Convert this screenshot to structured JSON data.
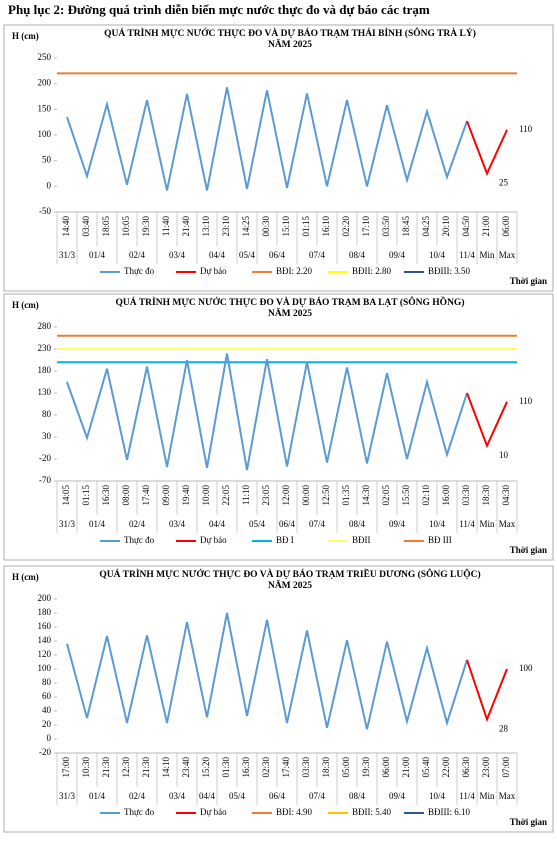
{
  "header": {
    "title": "Phụ lục 2: Đường quá trình diễn biến mực nước thực đo và dự báo các trạm"
  },
  "chart_data": [
    {
      "type": "line",
      "title": "QUÁ TRÌNH MỰC NƯỚC THỰC ĐO VÀ DỰ BÁO TRẠM THÁI BÌNH (SÔNG TRÀ LÝ)",
      "subtitle": "NĂM 2025",
      "y_label": "H (cm)",
      "x_label": "Thời gian",
      "categories": [
        "14:40",
        "03:40",
        "18:05",
        "10:05",
        "19:30",
        "11:40",
        "21:40",
        "13:10",
        "23:10",
        "14:25",
        "00:30",
        "15:10",
        "01:15",
        "16:10",
        "02:20",
        "17:10",
        "03:50",
        "18:45",
        "04:25",
        "20:10",
        "04:50",
        "21:00",
        "06:00"
      ],
      "dates": [
        "31/3",
        "01/4",
        null,
        "02/4",
        null,
        "03/4",
        null,
        "04/4",
        null,
        "05/4",
        "06/4",
        null,
        "07/4",
        null,
        "08/4",
        null,
        "09/4",
        null,
        "10/4",
        null,
        "11/4",
        "Min",
        "Max"
      ],
      "series": [
        {
          "name": "Thực đo",
          "color": "#5b9bd5",
          "values": [
            135,
            20,
            160,
            3,
            168,
            -8,
            180,
            -8,
            193,
            -5,
            187,
            -3,
            181,
            0,
            168,
            0,
            158,
            12,
            146,
            18,
            127,
            null,
            null
          ]
        },
        {
          "name": "Dự báo",
          "color": "#ff0000",
          "values": [
            null,
            null,
            null,
            null,
            null,
            null,
            null,
            null,
            null,
            null,
            null,
            null,
            null,
            null,
            null,
            null,
            null,
            null,
            null,
            null,
            127,
            25,
            110
          ]
        }
      ],
      "levels": [
        {
          "name": "BĐI: 2.20",
          "color": "#ed7d31",
          "value": 220
        },
        {
          "name": "BĐII: 2.80",
          "color": "#ffff00",
          "value": 280
        },
        {
          "name": "BĐIII: 3.50",
          "color": "#2f5597",
          "value": 350
        }
      ],
      "ylim": [
        -50,
        250
      ],
      "yticks": [
        -50,
        0,
        50,
        100,
        150,
        200,
        250
      ]
    },
    {
      "type": "line",
      "title": "QUÁ TRÌNH MỰC NƯỚC THỰC ĐO VÀ DỰ BÁO TRẠM BA LẠT (SÔNG HỒNG)",
      "subtitle": "NĂM 2025",
      "y_label": "H (cm)",
      "x_label": "Thời gian",
      "categories": [
        "14:05",
        "01:15",
        "16:30",
        "08:00",
        "17:40",
        "09:00",
        "19:40",
        "10:00",
        "22:05",
        "11:10",
        "23:05",
        "12:00",
        "00:00",
        "12:50",
        "01:35",
        "14:30",
        "02:05",
        "15:50",
        "02:10",
        "16:00",
        "03:30",
        "18:30",
        "04:30"
      ],
      "dates": [
        "31/3",
        "01/4",
        null,
        "02/4",
        null,
        "03/4",
        null,
        "04/4",
        null,
        "05/4",
        null,
        "06/4",
        "07/4",
        null,
        "08/4",
        null,
        "09/4",
        null,
        "10/4",
        null,
        "11/4",
        "Min",
        "Max"
      ],
      "series": [
        {
          "name": "Thực đo",
          "color": "#5b9bd5",
          "values": [
            155,
            28,
            185,
            -22,
            190,
            -38,
            205,
            -40,
            220,
            -45,
            207,
            -37,
            200,
            -28,
            188,
            -30,
            175,
            -20,
            155,
            -10,
            130,
            null,
            null
          ]
        },
        {
          "name": "Dự báo",
          "color": "#ff0000",
          "values": [
            null,
            null,
            null,
            null,
            null,
            null,
            null,
            null,
            null,
            null,
            null,
            null,
            null,
            null,
            null,
            null,
            null,
            null,
            null,
            null,
            130,
            10,
            110
          ]
        }
      ],
      "levels": [
        {
          "name": "BĐ I",
          "color": "#00b0f0",
          "value": 200
        },
        {
          "name": "BĐII",
          "color": "#ffff66",
          "value": 230
        },
        {
          "name": "BĐ III",
          "color": "#ed7d31",
          "value": 260
        }
      ],
      "ylim": [
        -70,
        280
      ],
      "yticks": [
        -70,
        -20,
        30,
        80,
        130,
        180,
        230,
        280
      ]
    },
    {
      "type": "line",
      "title": "QUÁ TRÌNH MỰC NƯỚC THỰC ĐO VÀ DỰ BÁO TRẠM TRIỀU DƯƠNG  (SÔNG LUỘC)",
      "subtitle": "NĂM 2025",
      "y_label": "H (cm)",
      "x_label": "Thời gian",
      "categories": [
        "17:00",
        "10:30",
        "21:30",
        "12:30",
        "21:30",
        "14:10",
        "23:40",
        "15:20",
        "01:30",
        "16:30",
        "02:30",
        "17:40",
        "03:30",
        "18:30",
        "05:00",
        "19:30",
        "06:00",
        "21:00",
        "05:40",
        "22:00",
        "06:30",
        "23:00",
        "07:00"
      ],
      "dates": [
        "31/3",
        "01/4",
        null,
        "02/4",
        null,
        "03/4",
        null,
        "04/4",
        "05/4",
        null,
        "06/4",
        null,
        "07/4",
        null,
        "08/4",
        null,
        "09/4",
        null,
        "10/4",
        null,
        "11/4",
        "Min",
        "Max"
      ],
      "series": [
        {
          "name": "Thực đo",
          "color": "#5b9bd5",
          "values": [
            136,
            30,
            147,
            23,
            148,
            23,
            167,
            31,
            180,
            33,
            170,
            23,
            155,
            16,
            141,
            14,
            139,
            25,
            130,
            23,
            113,
            null,
            null
          ]
        },
        {
          "name": "Dự báo",
          "color": "#ff0000",
          "values": [
            null,
            null,
            null,
            null,
            null,
            null,
            null,
            null,
            null,
            null,
            null,
            null,
            null,
            null,
            null,
            null,
            null,
            null,
            null,
            null,
            113,
            28,
            100
          ]
        }
      ],
      "levels": [
        {
          "name": "BĐI: 4.90",
          "color": "#ed7d31",
          "value": 490
        },
        {
          "name": "BĐII: 5.40",
          "color": "#ffc000",
          "value": 540
        },
        {
          "name": "BĐIII: 6.10",
          "color": "#2f5597",
          "value": 610
        }
      ],
      "ylim": [
        -20,
        200
      ],
      "yticks": [
        -20,
        0,
        20,
        40,
        60,
        80,
        100,
        120,
        140,
        160,
        180,
        200
      ]
    }
  ]
}
